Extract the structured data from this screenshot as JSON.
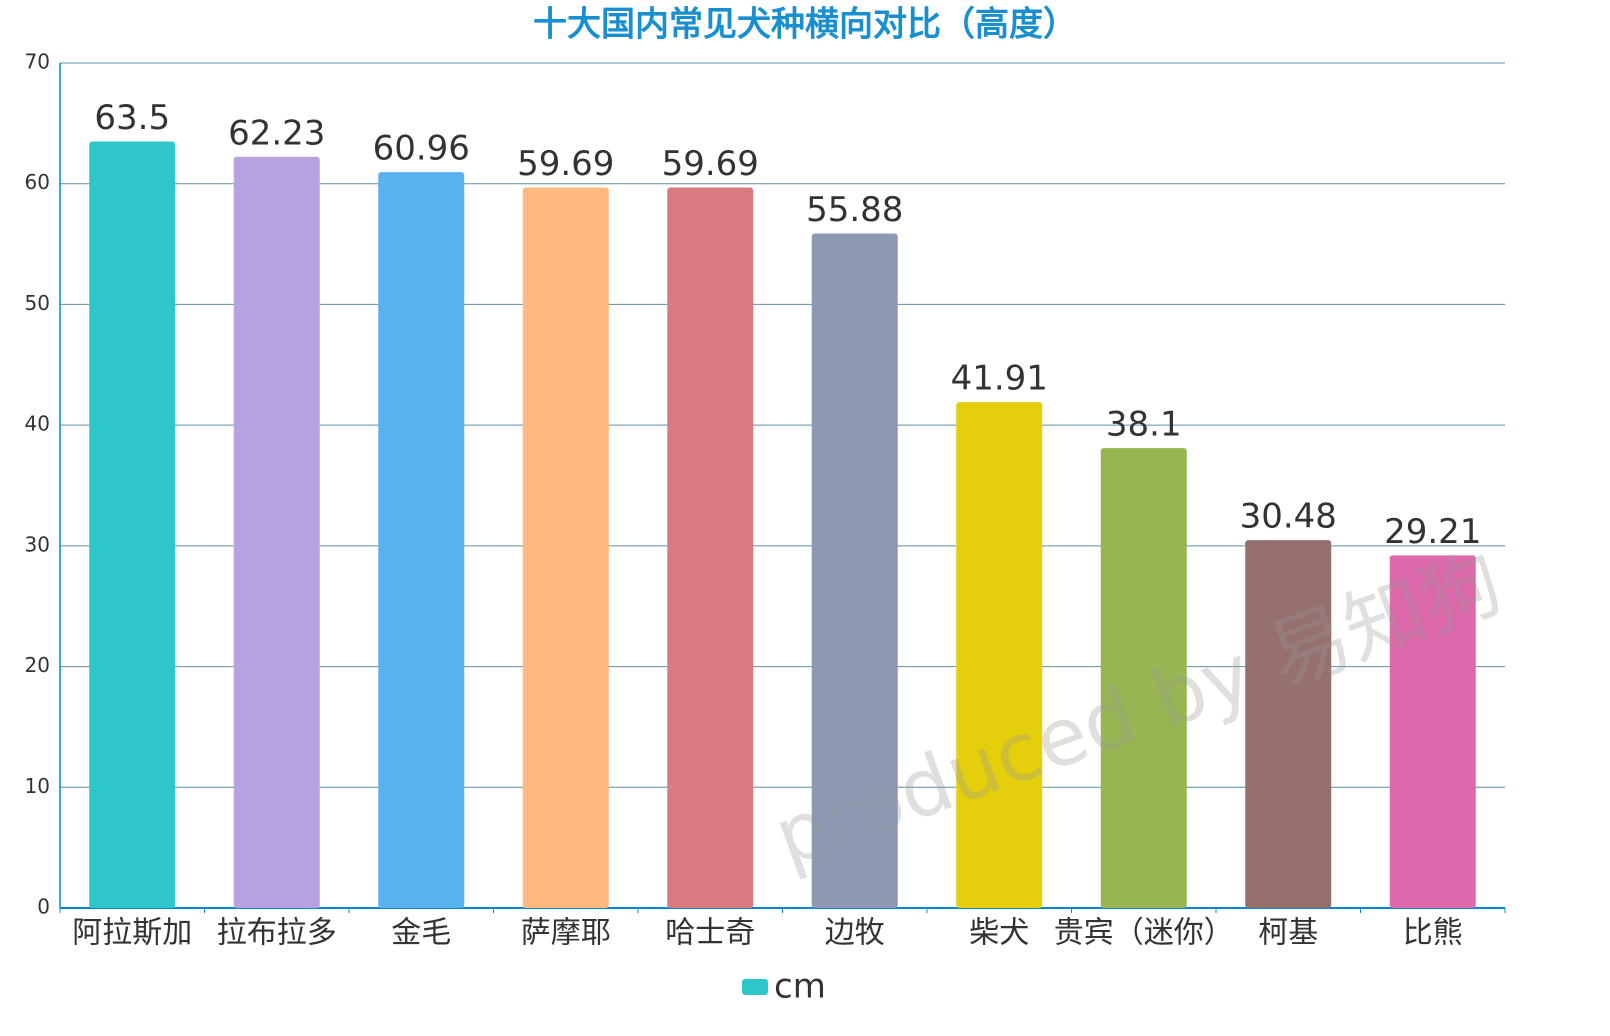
{
  "chart_data": {
    "type": "bar",
    "title": "十大国内常见犬种横向对比（高度）",
    "categories": [
      "阿拉斯加",
      "拉布拉多",
      "金毛",
      "萨摩耶",
      "哈士奇",
      "边牧",
      "柴犬",
      "贵宾（迷你）",
      "柯基",
      "比熊"
    ],
    "series": [
      {
        "name": "cm",
        "color": "#2ec7c9",
        "values": [
          63.5,
          62.23,
          60.96,
          59.69,
          59.69,
          55.88,
          41.91,
          38.1,
          30.48,
          29.21
        ],
        "colors": [
          "#2ec7c9",
          "#b6a2de",
          "#5ab1ef",
          "#ffb980",
          "#d87a80",
          "#8d98b3",
          "#e5cf0d",
          "#97b552",
          "#95706d",
          "#dc69aa"
        ]
      }
    ],
    "ylim": [
      0,
      70
    ],
    "yticks": [
      0,
      10,
      20,
      30,
      40,
      50,
      60,
      70
    ],
    "grid": true,
    "legend": "bottom",
    "watermark": "produced by  易知狗"
  }
}
